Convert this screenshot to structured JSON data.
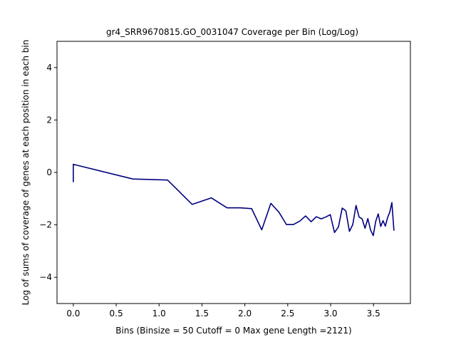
{
  "chart_data": {
    "type": "line",
    "title": "gr4_SRR9670815.GO_0031047 Coverage per Bin (Log/Log)",
    "xlabel": "Bins  (Binsize = 50 Cutoff = 0 Max gene Length =2121)",
    "ylabel": "Log of sums of coverage of genes at each position in each bin",
    "xlim": [
      -0.19,
      3.93
    ],
    "ylim": [
      -5,
      5
    ],
    "xticks": [
      0.0,
      0.5,
      1.0,
      1.5,
      2.0,
      2.5,
      3.0,
      3.5
    ],
    "xtick_labels": [
      "0.0",
      "0.5",
      "1.0",
      "1.5",
      "2.0",
      "2.5",
      "3.0",
      "3.5"
    ],
    "yticks": [
      -4,
      -2,
      0,
      2,
      4
    ],
    "ytick_labels": [
      "−4",
      "−2",
      "0",
      "2",
      "4"
    ],
    "grid": false,
    "line_color": "#000080",
    "series": [
      {
        "x": [
          0.0,
          0.0,
          0.693,
          1.099,
          1.386,
          1.609,
          1.792,
          1.946,
          2.079,
          2.197,
          2.303,
          2.398,
          2.485,
          2.565,
          2.639,
          2.708,
          2.773,
          2.833,
          2.89,
          2.944,
          2.996,
          3.045,
          3.091,
          3.135,
          3.178,
          3.219,
          3.258,
          3.296,
          3.332,
          3.367,
          3.401,
          3.434,
          3.466,
          3.497,
          3.526,
          3.555,
          3.584,
          3.611,
          3.638,
          3.664,
          3.689,
          3.714,
          3.738
        ],
        "y": [
          -0.37,
          0.31,
          -0.25,
          -0.29,
          -1.22,
          -0.97,
          -1.35,
          -1.35,
          -1.38,
          -2.19,
          -1.18,
          -1.52,
          -1.99,
          -1.99,
          -1.86,
          -1.66,
          -1.88,
          -1.69,
          -1.77,
          -1.7,
          -1.61,
          -2.29,
          -2.08,
          -1.36,
          -1.47,
          -2.25,
          -1.99,
          -1.26,
          -1.7,
          -1.77,
          -2.13,
          -1.76,
          -2.2,
          -2.41,
          -1.86,
          -1.58,
          -2.06,
          -1.84,
          -2.05,
          -1.72,
          -1.52,
          -1.15,
          -2.22
        ]
      }
    ]
  }
}
